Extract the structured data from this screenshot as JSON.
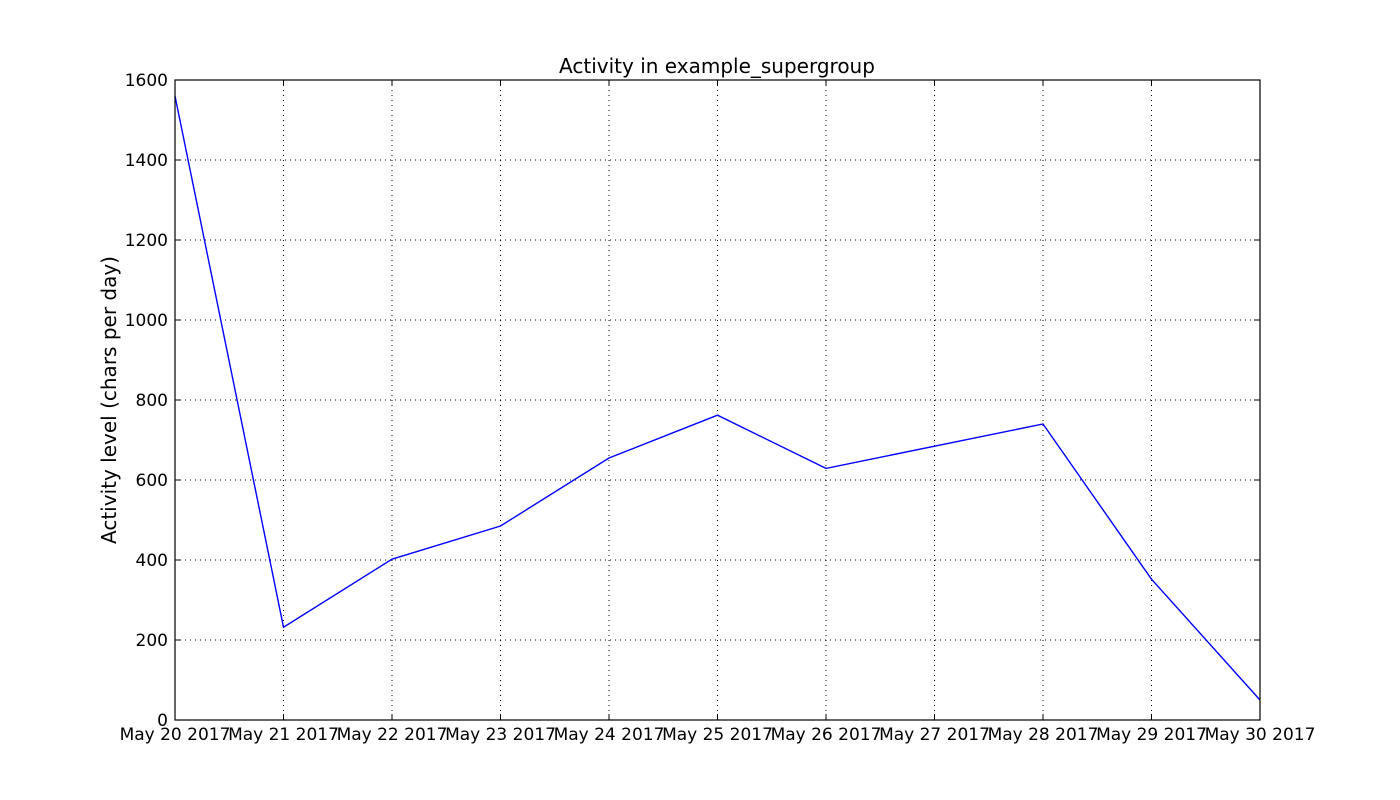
{
  "chart_data": {
    "type": "line",
    "title": "Activity in example_supergroup",
    "xlabel": "",
    "ylabel": "Activity level (chars per day)",
    "ylim": [
      0,
      1600
    ],
    "yticks": [
      0,
      200,
      400,
      600,
      800,
      1000,
      1200,
      1400,
      1600
    ],
    "grid": true,
    "categories": [
      "May 20 2017",
      "May 21 2017",
      "May 22 2017",
      "May 23 2017",
      "May 24 2017",
      "May 25 2017",
      "May 26 2017",
      "May 27 2017",
      "May 28 2017",
      "May 29 2017",
      "May 30 2017"
    ],
    "series": [
      {
        "color": "#0000ff",
        "points": [
          {
            "x": "May 20 2017",
            "y": 1560
          },
          {
            "x": "May 21 2017",
            "y": 232
          },
          {
            "x": "May 22 2017",
            "y": 402
          },
          {
            "x": "May 23 2017",
            "y": 485
          },
          {
            "x": "May 24 2017",
            "y": 655
          },
          {
            "x": "May 25 2017",
            "y": 762
          },
          {
            "x": "May 26 2017",
            "y": 629
          },
          {
            "x": "May 28 2017",
            "y": 740
          },
          {
            "x": "May 29 2017",
            "y": 352
          },
          {
            "x": "May 30 2017",
            "y": 50
          }
        ]
      }
    ]
  }
}
